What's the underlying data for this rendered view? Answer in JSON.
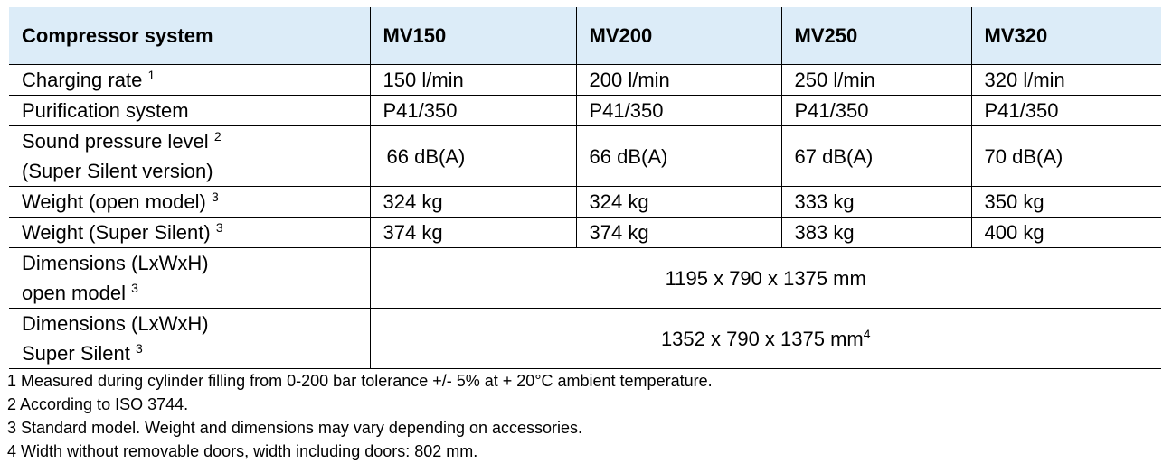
{
  "table": {
    "header": [
      "Compressor system",
      "MV150",
      "MV200",
      "MV250",
      "MV320"
    ],
    "rows": [
      {
        "label": "Charging rate",
        "sup": "1",
        "values": [
          "150 l/min",
          "200 l/min",
          "250 l/min",
          "320 l/min"
        ]
      },
      {
        "label": "Purification system",
        "sup": "",
        "values": [
          "P41/350",
          "P41/350",
          "P41/350",
          "P41/350"
        ]
      },
      {
        "label_line1": "Sound pressure level",
        "sup": "2",
        "label_line2": "(Super Silent version)",
        "values": [
          "66 dB(A)",
          "66 dB(A)",
          "67 dB(A)",
          "70 dB(A)"
        ]
      },
      {
        "label": "Weight (open model)",
        "sup": "3",
        "values": [
          "324 kg",
          "324 kg",
          "333 kg",
          "350 kg"
        ]
      },
      {
        "label": "Weight (Super Silent)",
        "sup": "3",
        "values": [
          "374 kg",
          "374 kg",
          "383 kg",
          "400 kg"
        ]
      },
      {
        "label_line1": "Dimensions (LxWxH)",
        "label_line2": "open model",
        "sup": "3",
        "value": "1195 x 790 x 1375 mm"
      },
      {
        "label_line1": "Dimensions (LxWxH)",
        "label_line2": "Super Silent",
        "sup": "3",
        "value": "1352 x 790 x 1375 mm",
        "value_sup": "4"
      }
    ]
  },
  "footnotes": [
    "1 Measured during cylinder filling from 0-200 bar tolerance +/- 5% at + 20°C ambient temperature.",
    "2 According to ISO 3744.",
    "3 Standard model. Weight and dimensions may vary depending on accessories.",
    "4 Width without removable doors, width including doors: 802 mm."
  ],
  "colors": {
    "header_bg": "#dcecf8",
    "border": "#000000"
  }
}
